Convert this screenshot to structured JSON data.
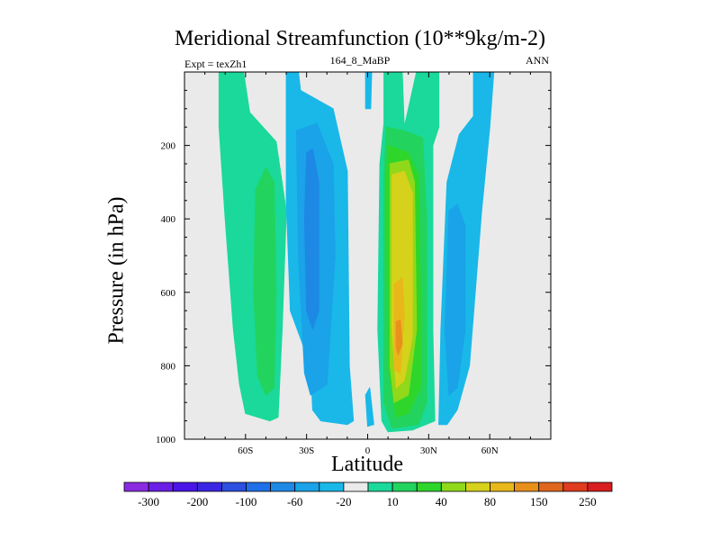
{
  "chart_data": {
    "type": "heatmap",
    "title": "Meridional Streamfunction (10**9kg/m-2)",
    "left_subtitle": "Expt = texZh1",
    "center_subtitle": "164_8_MaBP",
    "right_subtitle": "ANN",
    "xlabel": "Latitude",
    "ylabel": "Pressure (in hPa)",
    "xlim": [
      -90,
      90
    ],
    "ylim": [
      1000,
      0
    ],
    "x_ticks": [
      {
        "value": -60,
        "label": "60S"
      },
      {
        "value": -30,
        "label": "30S"
      },
      {
        "value": 0,
        "label": "0"
      },
      {
        "value": 30,
        "label": "30N"
      },
      {
        "value": 60,
        "label": "60N"
      }
    ],
    "y_ticks": [
      {
        "value": 200,
        "label": "200"
      },
      {
        "value": 400,
        "label": "400"
      },
      {
        "value": 600,
        "label": "600"
      },
      {
        "value": 800,
        "label": "800"
      },
      {
        "value": 1000,
        "label": "1000"
      }
    ],
    "colorbar": {
      "levels": [
        -300,
        -250,
        -200,
        -150,
        -100,
        -80,
        -60,
        -40,
        -20,
        -10,
        10,
        20,
        40,
        60,
        80,
        100,
        150,
        200,
        250,
        300
      ],
      "labels": [
        "-300",
        "-200",
        "-100",
        "-60",
        "-20",
        "10",
        "40",
        "80",
        "150",
        "250"
      ],
      "label_level_index": [
        0,
        2,
        4,
        6,
        8,
        10,
        12,
        14,
        16,
        18
      ],
      "colors": [
        "#8a2be2",
        "#6a1fe6",
        "#4a16e8",
        "#3a26e2",
        "#2b4fe0",
        "#1f6fe8",
        "#1e88e5",
        "#1aa3e8",
        "#19b8e8",
        "#eaeaea",
        "#1ad99a",
        "#22d45e",
        "#2ed62b",
        "#8fd91a",
        "#d6d11a",
        "#e8b81a",
        "#e8901c",
        "#e0661e",
        "#e03b1e",
        "#d81e1e"
      ]
    },
    "regions": [
      {
        "name": "sh-outer-cell-10",
        "color": "#1ad99a",
        "poly": [
          [
            -73,
            0
          ],
          [
            -61,
            0
          ],
          [
            -58,
            110
          ],
          [
            -45,
            190
          ],
          [
            -40,
            380
          ],
          [
            -42,
            700
          ],
          [
            -44,
            940
          ],
          [
            -48,
            950
          ],
          [
            -60,
            930
          ],
          [
            -63,
            850
          ],
          [
            -66,
            700
          ],
          [
            -70,
            400
          ],
          [
            -73,
            150
          ]
        ]
      },
      {
        "name": "sh-outer-cell-20",
        "color": "#22d45e",
        "poly": [
          [
            -55,
            320
          ],
          [
            -50,
            260
          ],
          [
            -46,
            300
          ],
          [
            -45,
            600
          ],
          [
            -46,
            860
          ],
          [
            -50,
            880
          ],
          [
            -54,
            830
          ],
          [
            -56,
            600
          ]
        ]
      },
      {
        "name": "sh-cell-neg10",
        "color": "#19b8e8",
        "poly": [
          [
            -40,
            0
          ],
          [
            -34,
            0
          ],
          [
            -33,
            50
          ],
          [
            -17,
            100
          ],
          [
            -10,
            270
          ],
          [
            -9,
            800
          ],
          [
            -7,
            950
          ],
          [
            -10,
            960
          ],
          [
            -23,
            950
          ],
          [
            -27,
            920
          ],
          [
            -28,
            800
          ],
          [
            -38,
            650
          ],
          [
            -40,
            350
          ]
        ]
      },
      {
        "name": "sh-cell-neg20",
        "color": "#1aa3e8",
        "poly": [
          [
            -35,
            160
          ],
          [
            -25,
            140
          ],
          [
            -17,
            250
          ],
          [
            -16,
            500
          ],
          [
            -20,
            850
          ],
          [
            -28,
            880
          ],
          [
            -31,
            820
          ],
          [
            -34,
            500
          ]
        ]
      },
      {
        "name": "sh-cell-neg40",
        "color": "#1e88e5",
        "poly": [
          [
            -30,
            220
          ],
          [
            -27,
            210
          ],
          [
            -24,
            300
          ],
          [
            -24,
            650
          ],
          [
            -27,
            700
          ],
          [
            -30,
            650
          ],
          [
            -31,
            400
          ]
        ]
      },
      {
        "name": "eq-neg-sliver-top",
        "color": "#19b8e8",
        "poly": [
          [
            -1,
            0
          ],
          [
            2,
            0
          ],
          [
            1.5,
            100
          ],
          [
            -1,
            100
          ]
        ]
      },
      {
        "name": "eq-neg-sliver-bottom",
        "color": "#19b8e8",
        "poly": [
          [
            -1,
            880
          ],
          [
            1,
            860
          ],
          [
            3,
            960
          ],
          [
            0,
            965
          ]
        ]
      },
      {
        "name": "nh-cell-10",
        "color": "#1ad99a",
        "poly": [
          [
            8,
            0
          ],
          [
            17,
            0
          ],
          [
            18,
            150
          ],
          [
            24,
            0
          ],
          [
            35,
            0
          ],
          [
            35,
            150
          ],
          [
            32,
            200
          ],
          [
            32,
            700
          ],
          [
            33,
            950
          ],
          [
            22,
            975
          ],
          [
            10,
            980
          ],
          [
            7,
            950
          ],
          [
            5,
            700
          ],
          [
            6,
            250
          ],
          [
            8,
            140
          ]
        ]
      },
      {
        "name": "nh-cell-20",
        "color": "#22d45e",
        "poly": [
          [
            9,
            150
          ],
          [
            18,
            160
          ],
          [
            27,
            180
          ],
          [
            29,
            400
          ],
          [
            29,
            900
          ],
          [
            25,
            960
          ],
          [
            12,
            970
          ],
          [
            8,
            900
          ],
          [
            8,
            300
          ]
        ]
      },
      {
        "name": "nh-cell-40",
        "color": "#2ed62b",
        "poly": [
          [
            10,
            200
          ],
          [
            20,
            220
          ],
          [
            25,
            280
          ],
          [
            26,
            600
          ],
          [
            26,
            860
          ],
          [
            20,
            930
          ],
          [
            14,
            940
          ],
          [
            10,
            800
          ],
          [
            9,
            300
          ]
        ]
      },
      {
        "name": "nh-cell-60",
        "color": "#8fd91a",
        "poly": [
          [
            11,
            250
          ],
          [
            20,
            240
          ],
          [
            23,
            300
          ],
          [
            24,
            700
          ],
          [
            20,
            880
          ],
          [
            13,
            900
          ],
          [
            11,
            800
          ]
        ]
      },
      {
        "name": "nh-cell-80",
        "color": "#d6d11a",
        "poly": [
          [
            12,
            280
          ],
          [
            18,
            270
          ],
          [
            22,
            330
          ],
          [
            22,
            720
          ],
          [
            18,
            840
          ],
          [
            14,
            860
          ],
          [
            12,
            700
          ]
        ]
      },
      {
        "name": "nh-cell-100",
        "color": "#e8b81a",
        "poly": [
          [
            13,
            580
          ],
          [
            17,
            560
          ],
          [
            18,
            660
          ],
          [
            16,
            820
          ],
          [
            13,
            810
          ]
        ]
      },
      {
        "name": "nh-cell-150",
        "color": "#e8901c",
        "poly": [
          [
            14,
            680
          ],
          [
            16,
            675
          ],
          [
            17,
            740
          ],
          [
            15,
            770
          ],
          [
            14,
            750
          ]
        ]
      },
      {
        "name": "nh-outer-neg10",
        "color": "#19b8e8",
        "poly": [
          [
            52,
            0
          ],
          [
            62,
            0
          ],
          [
            60,
            150
          ],
          [
            56,
            380
          ],
          [
            50,
            800
          ],
          [
            44,
            920
          ],
          [
            39,
            960
          ],
          [
            35,
            960
          ],
          [
            36,
            700
          ],
          [
            39,
            300
          ],
          [
            45,
            170
          ],
          [
            52,
            120
          ]
        ]
      },
      {
        "name": "nh-outer-neg20",
        "color": "#1aa3e8",
        "poly": [
          [
            40,
            380
          ],
          [
            44,
            360
          ],
          [
            48,
            420
          ],
          [
            48,
            700
          ],
          [
            44,
            860
          ],
          [
            40,
            880
          ],
          [
            38,
            700
          ]
        ]
      }
    ]
  }
}
